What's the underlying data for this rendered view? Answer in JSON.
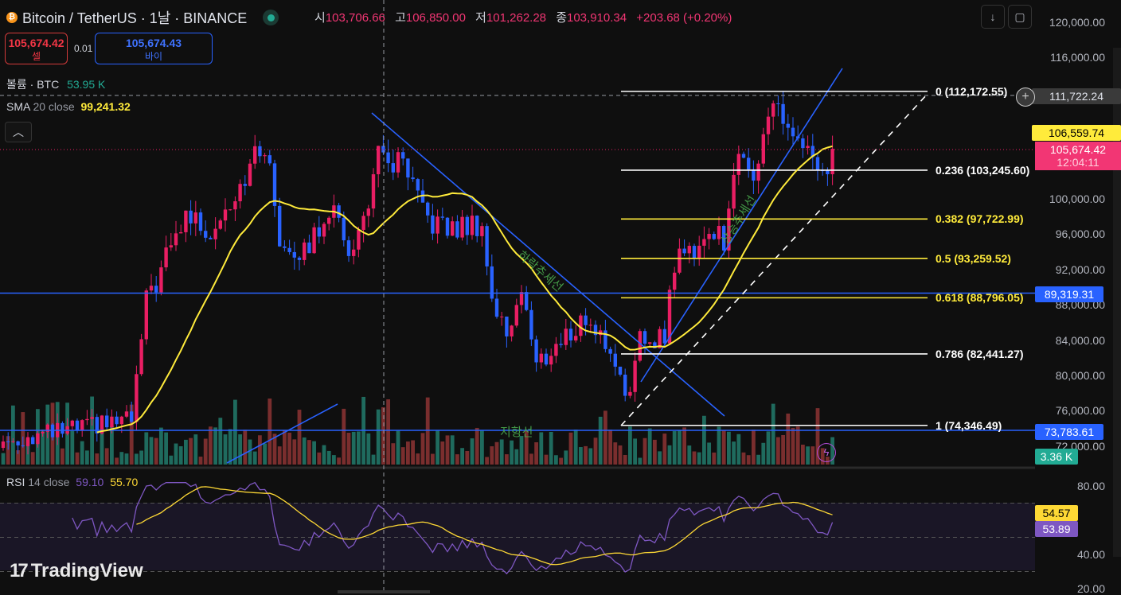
{
  "header": {
    "symbol": "Bitcoin / TetherUS · 1날 · BINANCE",
    "ohlc": [
      {
        "label": "시",
        "value": "103,706.66"
      },
      {
        "label": "고",
        "value": "106,850.00"
      },
      {
        "label": "저",
        "value": "101,262.28"
      },
      {
        "label": "종",
        "value": "103,910.34"
      }
    ],
    "change": "+203.68 (+0.20%)",
    "sell_price": "105,674.42",
    "sell_label": "셀",
    "spread": "0.01",
    "buy_price": "105,674.43",
    "buy_label": "바이",
    "collapse_icon": "chevron-up-icon"
  },
  "legends": {
    "volume_label": "볼륨 · BTC",
    "volume_value": "53.95 K",
    "sma_name": "SMA",
    "sma_params": "20 close",
    "sma_value": "99,241.32",
    "rsi_name": "RSI",
    "rsi_params": "14 close",
    "rsi_value": "59.10",
    "rsi_ma_value": "55.70"
  },
  "toolbar": {
    "scroll_icon": "arrow-down-icon",
    "fullscreen_icon": "fullscreen-icon"
  },
  "price_axis": [
    "120,000.00",
    "116,000.00",
    "100,000.00",
    "96,000.00",
    "92,000.00",
    "88,000.00",
    "84,000.00",
    "80,000.00",
    "76,000.00",
    "72,000.00"
  ],
  "rsi_axis": [
    "80.00",
    "40.00",
    "20.00"
  ],
  "badges": {
    "crosshair": "111,722.24",
    "sma": "106,559.74",
    "last_price": "105,674.42",
    "countdown": "12:04:11",
    "level_upper": "89,319.31",
    "level_lower": "73,783.61",
    "volume": "3.36 K",
    "rsi": "54.57",
    "rsi_ma": "53.89"
  },
  "fib_levels": [
    {
      "label": "0 (112,172.55)",
      "price": 112172.55,
      "color": "#ffffff"
    },
    {
      "label": "0.236 (103,245.60)",
      "price": 103245.6,
      "color": "#ffffff"
    },
    {
      "label": "0.382 (97,722.99)",
      "price": 97722.99,
      "color": "#ffeb3b"
    },
    {
      "label": "0.5 (93,259.52)",
      "price": 93259.52,
      "color": "#ffeb3b"
    },
    {
      "label": "0.618 (88,796.05)",
      "price": 88796.05,
      "color": "#ffeb3b"
    },
    {
      "label": "0.786 (82,441.27)",
      "price": 82441.27,
      "color": "#ffffff"
    },
    {
      "label": "1 (74,346.49)",
      "price": 74346.49,
      "color": "#ffffff"
    }
  ],
  "annotations": {
    "downtrend": "하락추세선",
    "uptrend": "상승추세선",
    "support": "지항선"
  },
  "logo": "TradingView",
  "colors": {
    "up": "#e91e63",
    "down": "#2962ff",
    "sma": "#ffeb3b",
    "rsi": "#7e57c2",
    "rsi_ma": "#fdd835",
    "level": "#2962ff"
  },
  "chart_data": {
    "type": "candlestick",
    "title": "Bitcoin / TetherUS · 1D · BINANCE",
    "ylim": [
      70000,
      122000
    ],
    "horizontal_levels": [
      89319.31,
      73783.61
    ],
    "close_keypoints": [
      [
        0,
        72500
      ],
      [
        26,
        75000
      ],
      [
        29,
        88300
      ],
      [
        32,
        91900
      ],
      [
        37,
        98200
      ],
      [
        42,
        96400
      ],
      [
        48,
        101800
      ],
      [
        53,
        106300
      ],
      [
        56,
        95500
      ],
      [
        61,
        93700
      ],
      [
        66,
        99100
      ],
      [
        71,
        93700
      ],
      [
        76,
        104500
      ],
      [
        81,
        103600
      ],
      [
        85,
        98200
      ],
      [
        90,
        96400
      ],
      [
        97,
        97300
      ],
      [
        99,
        88300
      ],
      [
        102,
        84700
      ],
      [
        105,
        90100
      ],
      [
        108,
        81100
      ],
      [
        113,
        83800
      ],
      [
        118,
        86500
      ],
      [
        123,
        82900
      ],
      [
        127,
        77500
      ],
      [
        129,
        83800
      ],
      [
        134,
        84700
      ],
      [
        136,
        92800
      ],
      [
        140,
        94600
      ],
      [
        144,
        96400
      ],
      [
        146,
        95500
      ],
      [
        148,
        103600
      ],
      [
        152,
        103600
      ],
      [
        155,
        109000
      ],
      [
        156,
        110800
      ],
      [
        160,
        107200
      ],
      [
        163,
        104500
      ],
      [
        166,
        101800
      ],
      [
        168,
        105674
      ]
    ],
    "rsi_ylim": [
      20,
      85
    ],
    "rsi_bands": [
      70,
      50,
      30
    ]
  }
}
